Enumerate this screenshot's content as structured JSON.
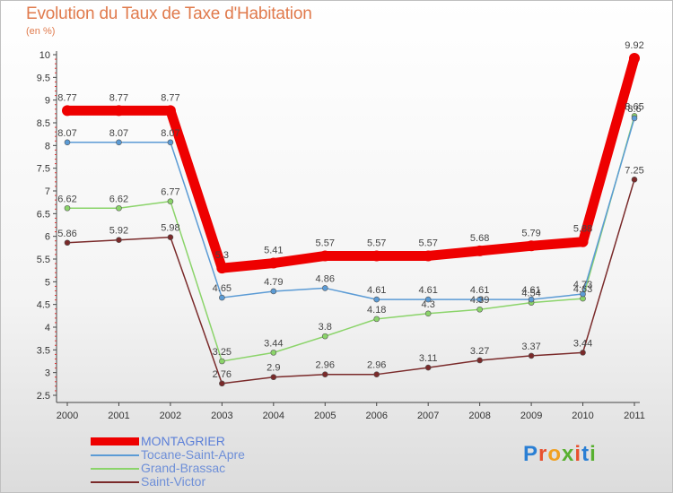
{
  "header": {
    "title": "Evolution du Taux de Taxe d'Habitation",
    "unit": "(en %)"
  },
  "logo": {
    "text": "Proxiti",
    "colors": [
      "#2a7fd4",
      "#e8502e",
      "#f0a020",
      "#58b030",
      "#e8502e",
      "#2a7fd4",
      "#58b030"
    ]
  },
  "chart_data": {
    "type": "line",
    "title": "Evolution du Taux de Taxe d'Habitation",
    "ylabel": "(en %)",
    "xlabel": "",
    "ylim": [
      2.5,
      10
    ],
    "yticks": [
      "2.5",
      "3",
      "3.5",
      "4",
      "4.5",
      "5",
      "5.5",
      "6",
      "6.5",
      "7",
      "7.5",
      "8",
      "8.5",
      "9",
      "9.5",
      "10"
    ],
    "grid": false,
    "legend_position": "bottom-left",
    "x": [
      "2000",
      "2001",
      "2002",
      "2003",
      "2004",
      "2005",
      "2006",
      "2007",
      "2008",
      "2009",
      "2010",
      "2011"
    ],
    "series": [
      {
        "name": "MONTAGRIER",
        "color": "#ee0000",
        "values": [
          8.77,
          8.77,
          8.77,
          5.3,
          5.41,
          5.57,
          5.57,
          5.57,
          5.68,
          5.79,
          5.88,
          9.92
        ],
        "labels": [
          "8.77",
          "8.77",
          "8.77",
          "5.3",
          "5.41",
          "5.57",
          "5.57",
          "5.57",
          "5.68",
          "5.79",
          "5.88",
          "9.92"
        ]
      },
      {
        "name": "Tocane-Saint-Apre",
        "color": "#5b9bd5",
        "values": [
          8.07,
          8.07,
          8.07,
          4.65,
          4.79,
          4.86,
          4.61,
          4.61,
          4.61,
          4.61,
          4.73,
          8.6
        ],
        "labels": [
          "8.07",
          "8.07",
          "8.07",
          "4.65",
          "4.79",
          "4.86",
          "4.61",
          "4.61",
          "4.61",
          "4.61",
          "4.73",
          "8.6"
        ]
      },
      {
        "name": "Grand-Brassac",
        "color": "#8bd46a",
        "values": [
          6.62,
          6.62,
          6.77,
          3.25,
          3.44,
          3.8,
          4.18,
          4.3,
          4.39,
          4.54,
          4.63,
          8.65
        ],
        "labels": [
          "6.62",
          "6.62",
          "6.77",
          "3.25",
          "3.44",
          "3.8",
          "4.18",
          "4.3",
          "4.39",
          "4.54",
          "4.63",
          "8.65"
        ]
      },
      {
        "name": "Saint-Victor",
        "color": "#7a2a2a",
        "values": [
          5.86,
          5.92,
          5.98,
          2.76,
          2.9,
          2.96,
          2.96,
          3.11,
          3.27,
          3.37,
          3.44,
          7.25
        ],
        "labels": [
          "5.86",
          "5.92",
          "5.98",
          "2.76",
          "2.9",
          "2.96",
          "2.96",
          "3.11",
          "3.27",
          "3.37",
          "3.44",
          "7.25"
        ]
      }
    ]
  }
}
